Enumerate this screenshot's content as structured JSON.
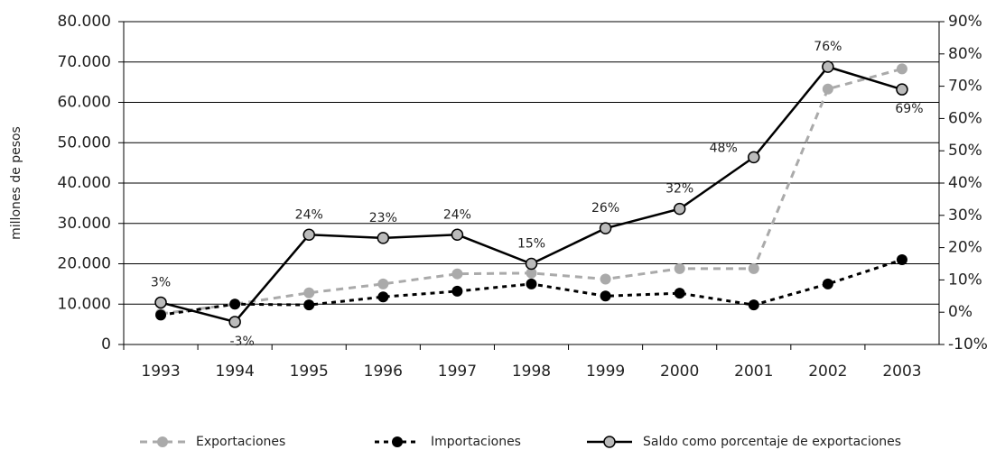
{
  "chart_data": {
    "type": "line",
    "y_axis_label": "millones de pesos",
    "categories": [
      "1993",
      "1994",
      "1995",
      "1996",
      "1997",
      "1998",
      "1999",
      "2000",
      "2001",
      "2002",
      "2003"
    ],
    "series": [
      {
        "name": "Exportaciones",
        "color": "#aaaaaa",
        "style": "dashed",
        "values": [
          7600,
          10000,
          12800,
          15000,
          17500,
          17700,
          16200,
          18800,
          18800,
          63300,
          68300
        ]
      },
      {
        "name": "Importaciones",
        "color": "#000000",
        "style": "dotted",
        "values": [
          7300,
          10000,
          9800,
          11800,
          13200,
          15000,
          12000,
          12700,
          9800,
          15000,
          21000
        ]
      },
      {
        "name": "Saldo como porcentaje de exportaciones",
        "color": "#000000",
        "style": "solid",
        "axis": "y2",
        "values": [
          3,
          -3,
          24,
          23,
          24,
          15,
          26,
          32,
          48,
          76,
          69
        ],
        "value_labels": [
          "3%",
          "-3%",
          "24%",
          "23%",
          "24%",
          "15%",
          "26%",
          "32%",
          "48%",
          "76%",
          "69%"
        ]
      }
    ],
    "ylim": [
      0,
      80000
    ],
    "yticks": [
      0,
      {
        "value": 10000,
        "label": "10.000"
      },
      {
        "value": 20000,
        "label": "20.000"
      },
      {
        "value": 30000,
        "label": "30.000"
      },
      {
        "value": 40000,
        "label": "40.000"
      },
      {
        "value": 50000,
        "label": "50.000"
      },
      {
        "value": 60000,
        "label": "60.000"
      },
      {
        "value": 70000,
        "label": "70.000"
      },
      {
        "value": 80000,
        "label": "80.000"
      }
    ],
    "y2lim": [
      -10,
      90
    ],
    "y2ticks": [
      {
        "value": -10,
        "label": "-10%"
      },
      {
        "value": 0,
        "label": "0%"
      },
      {
        "value": 10,
        "label": "10%"
      },
      {
        "value": 20,
        "label": "20%"
      },
      {
        "value": 30,
        "label": "30%"
      },
      {
        "value": 40,
        "label": "40%"
      },
      {
        "value": 50,
        "label": "50%"
      },
      {
        "value": 60,
        "label": "60%"
      },
      {
        "value": 70,
        "label": "70%"
      },
      {
        "value": 80,
        "label": "80%"
      },
      {
        "value": 90,
        "label": "90%"
      }
    ],
    "grid": true,
    "legend": "bottom"
  }
}
